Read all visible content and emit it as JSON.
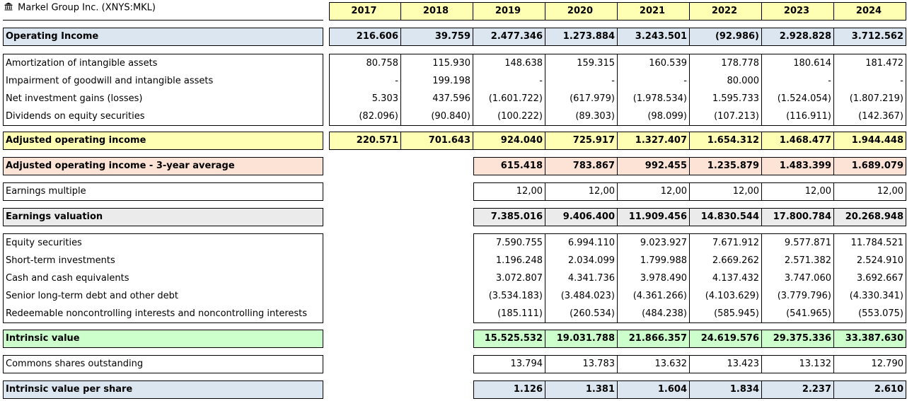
{
  "title": "Markel Group Inc. (XNYS:MKL)",
  "title_icon": "bank-icon",
  "colors": {
    "year_header": "#ffffb3",
    "operating_income": "#dce6f1",
    "adjusted_operating_income": "#ffffb3",
    "three_year_average": "#fde2d6",
    "earnings_valuation": "#ebebeb",
    "intrinsic_value": "#ccffcc",
    "intrinsic_value_per_share": "#dce6f1"
  },
  "years": [
    "2017",
    "2018",
    "2019",
    "2020",
    "2021",
    "2022",
    "2023",
    "2024"
  ],
  "rows": {
    "operating_income": {
      "label": "Operating Income",
      "values": [
        "216.606",
        "39.759",
        "2.477.346",
        "1.273.884",
        "3.243.501",
        "(92.986)",
        "2.928.828",
        "3.712.562"
      ]
    },
    "amortization": {
      "label": "Amortization of intangible assets",
      "values": [
        "80.758",
        "115.930",
        "148.638",
        "159.315",
        "160.539",
        "178.778",
        "180.614",
        "181.472"
      ]
    },
    "impairment": {
      "label": "Impairment of goodwill and intangible assets",
      "values": [
        "-",
        "199.198",
        "-",
        "-",
        "-",
        "80.000",
        "-",
        "-"
      ]
    },
    "net_investment": {
      "label": "Net investment gains (losses)",
      "values": [
        "5.303",
        "437.596",
        "(1.601.722)",
        "(617.979)",
        "(1.978.534)",
        "1.595.733",
        "(1.524.054)",
        "(1.807.219)"
      ]
    },
    "dividends": {
      "label": "Dividends on equity securities",
      "values": [
        "(82.096)",
        "(90.840)",
        "(100.222)",
        "(89.303)",
        "(98.099)",
        "(107.213)",
        "(116.911)",
        "(142.367)"
      ]
    },
    "adjusted_operating_income": {
      "label": "Adjusted operating income",
      "values": [
        "220.571",
        "701.643",
        "924.040",
        "725.917",
        "1.327.407",
        "1.654.312",
        "1.468.477",
        "1.944.448"
      ]
    },
    "three_year_average": {
      "label": "Adjusted operating income - 3-year average",
      "values": [
        "615.418",
        "783.867",
        "992.455",
        "1.235.879",
        "1.483.399",
        "1.689.079"
      ]
    },
    "earnings_multiple": {
      "label": "Earnings multiple",
      "values": [
        "12,00",
        "12,00",
        "12,00",
        "12,00",
        "12,00",
        "12,00"
      ]
    },
    "earnings_valuation": {
      "label": "Earnings valuation",
      "values": [
        "7.385.016",
        "9.406.400",
        "11.909.456",
        "14.830.544",
        "17.800.784",
        "20.268.948"
      ]
    },
    "equity_securities": {
      "label": "Equity securities",
      "values": [
        "7.590.755",
        "6.994.110",
        "9.023.927",
        "7.671.912",
        "9.577.871",
        "11.784.521"
      ]
    },
    "short_term": {
      "label": "Short-term investments",
      "values": [
        "1.196.248",
        "2.034.099",
        "1.799.988",
        "2.669.262",
        "2.571.382",
        "2.524.910"
      ]
    },
    "cash": {
      "label": "Cash and cash equivalents",
      "values": [
        "3.072.807",
        "4.341.736",
        "3.978.490",
        "4.137.432",
        "3.747.060",
        "3.692.667"
      ]
    },
    "senior_debt": {
      "label": "Senior long-term debt and other debt",
      "values": [
        "(3.534.183)",
        "(3.484.023)",
        "(4.361.266)",
        "(4.103.629)",
        "(3.779.796)",
        "(4.330.341)"
      ]
    },
    "redeemable": {
      "label": "Redeemable noncontrolling interests and noncontrolling interests",
      "values": [
        "(185.111)",
        "(260.534)",
        "(484.238)",
        "(585.945)",
        "(541.965)",
        "(553.075)"
      ]
    },
    "intrinsic_value": {
      "label": "Intrinsic value",
      "values": [
        "15.525.532",
        "19.031.788",
        "21.866.357",
        "24.619.576",
        "29.375.336",
        "33.387.630"
      ]
    },
    "shares_outstanding": {
      "label": "Commons shares outstanding",
      "values": [
        "13.794",
        "13.783",
        "13.632",
        "13.423",
        "13.132",
        "12.790"
      ]
    },
    "intrinsic_value_per_share": {
      "label": "Intrinsic value per share",
      "values": [
        "1.126",
        "1.381",
        "1.604",
        "1.834",
        "2.237",
        "2.610"
      ]
    }
  }
}
